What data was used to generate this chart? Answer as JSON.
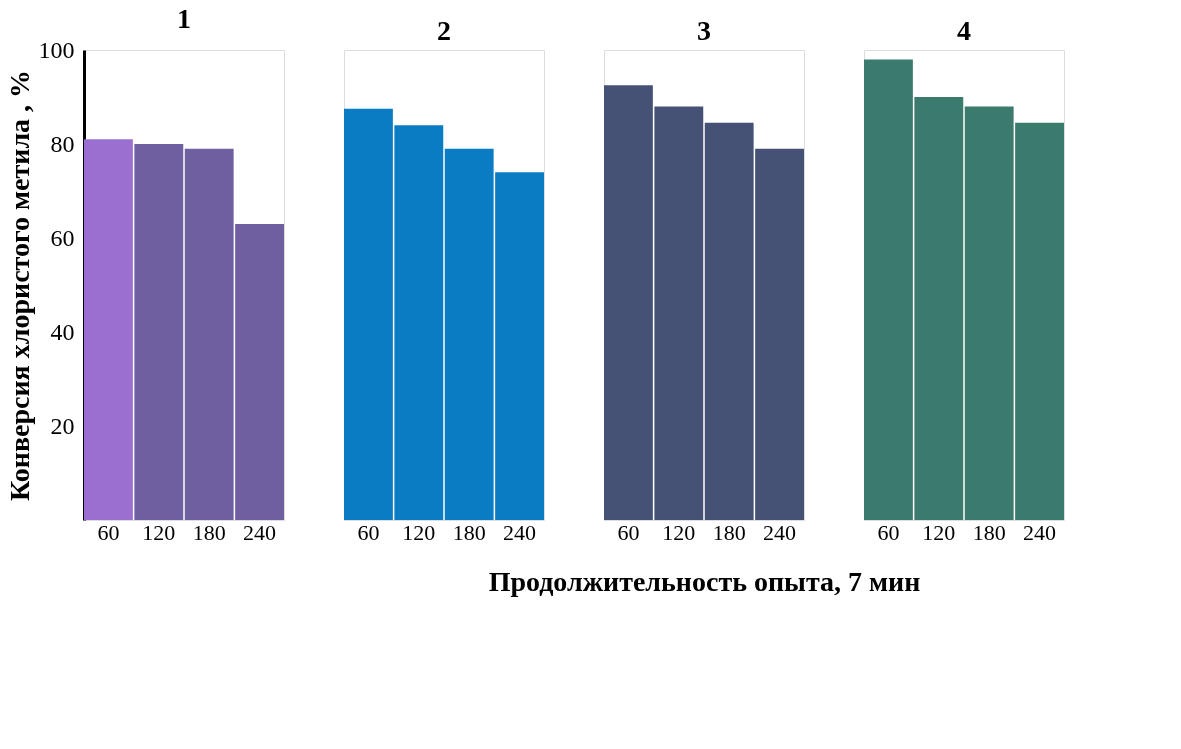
{
  "chart_data": [
    {
      "type": "bar",
      "title": "1",
      "ylabel": "Конверсия хлористого метила , %",
      "categories": [
        "60",
        "120",
        "180",
        "240"
      ],
      "values": [
        81,
        80,
        79,
        63
      ],
      "colors": [
        "#9b6fcf",
        "#6f5fa0",
        "#6f5fa0",
        "#6f5fa0"
      ],
      "ylim": [
        0,
        100
      ],
      "yticks": [
        20,
        40,
        60,
        80,
        100
      ],
      "grid": false
    },
    {
      "type": "bar",
      "title": "2",
      "categories": [
        "60",
        "120",
        "180",
        "240"
      ],
      "values": [
        87.5,
        84,
        79,
        74
      ],
      "color": "#0a7cc4",
      "ylim": [
        0,
        100
      ],
      "yticks": [
        20,
        40,
        60,
        80,
        100
      ],
      "tick_labels": "x",
      "grid": false
    },
    {
      "type": "bar",
      "title": "3",
      "xlabel": "Продолжительность опыта, 7 мин",
      "categories": [
        "60",
        "120",
        "180",
        "240"
      ],
      "values": [
        92.5,
        88,
        84.5,
        79
      ],
      "color": "#465275",
      "ylim": [
        0,
        100
      ],
      "yticks": [
        20,
        40,
        60,
        80,
        100
      ],
      "tick_labels": "x",
      "grid": false
    },
    {
      "type": "bar",
      "title": "4",
      "categories": [
        "60",
        "120",
        "180",
        "240"
      ],
      "values": [
        98,
        90,
        88,
        84.5
      ],
      "color": "#3a7b6e",
      "ylim": [
        0,
        100
      ],
      "yticks": [
        20,
        40,
        60,
        80,
        100
      ],
      "tick_labels": "x",
      "grid": false
    }
  ]
}
